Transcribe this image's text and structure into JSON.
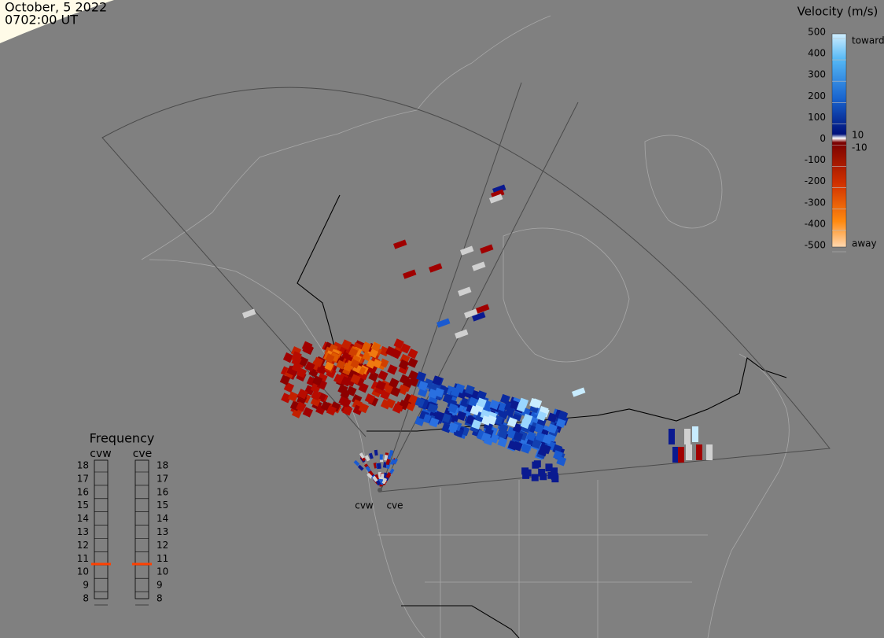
{
  "header": {
    "date": "October, 5 2022",
    "time": "0702:00 UT"
  },
  "colorbar": {
    "title": "Velocity (m/s)",
    "ticks": [
      500,
      400,
      300,
      200,
      100,
      0,
      -100,
      -200,
      -300,
      -400,
      -500
    ],
    "inner_labels": [
      "10",
      "-10"
    ],
    "end_labels": [
      "toward",
      "away"
    ]
  },
  "frequency": {
    "title": "Frequency",
    "radars": [
      "cvw",
      "cve"
    ],
    "ticks": [
      18,
      17,
      16,
      15,
      14,
      13,
      12,
      11,
      10,
      9,
      8
    ],
    "current": [
      10.6,
      10.6
    ]
  },
  "sites": [
    "cvw",
    "cve"
  ]
}
